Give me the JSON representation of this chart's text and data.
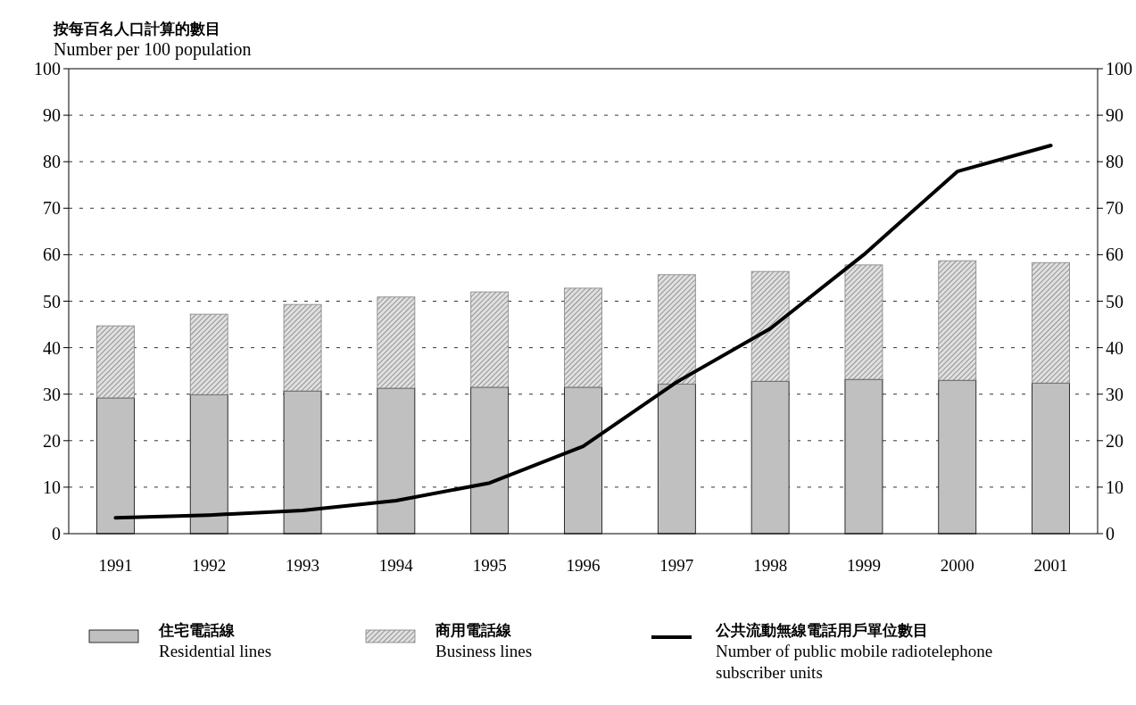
{
  "chart_data": {
    "type": "bar",
    "stacked": true,
    "ylabel": "按每百名人口計算的數目\nNumber  per 100 population",
    "categories": [
      "1991",
      "1992",
      "1993",
      "1994",
      "1995",
      "1996",
      "1997",
      "1998",
      "1999",
      "2000",
      "2001"
    ],
    "series": [
      {
        "name": "住宅電話線\nResidential lines",
        "color": "#c0c0c0",
        "values": [
          29.2,
          29.9,
          30.7,
          31.3,
          31.5,
          31.5,
          32.2,
          32.8,
          33.2,
          33.0,
          32.4
        ]
      },
      {
        "name": "商用電話線\nBusiness lines",
        "color": "#808080",
        "values": [
          15.5,
          17.3,
          18.6,
          19.6,
          20.5,
          21.3,
          23.5,
          23.6,
          24.6,
          25.7,
          25.9
        ]
      },
      {
        "type": "line",
        "name": "公共流動無線電話用戶單位數目\nNumber of public mobile radiotelephone\nsubscriber units",
        "color": "#000000",
        "values": [
          3.4,
          4.0,
          5.0,
          7.1,
          10.9,
          18.8,
          32.6,
          44.1,
          60.0,
          77.9,
          83.5
        ]
      }
    ],
    "ylim": [
      0,
      100
    ],
    "yticks": [
      0,
      10,
      20,
      30,
      40,
      50,
      60,
      70,
      80,
      90,
      100
    ],
    "y2lim": [
      0,
      100
    ],
    "y2ticks": [
      0,
      10,
      20,
      30,
      40,
      50,
      60,
      70,
      80,
      90,
      100
    ],
    "grid": "y",
    "legend": "bottom"
  }
}
